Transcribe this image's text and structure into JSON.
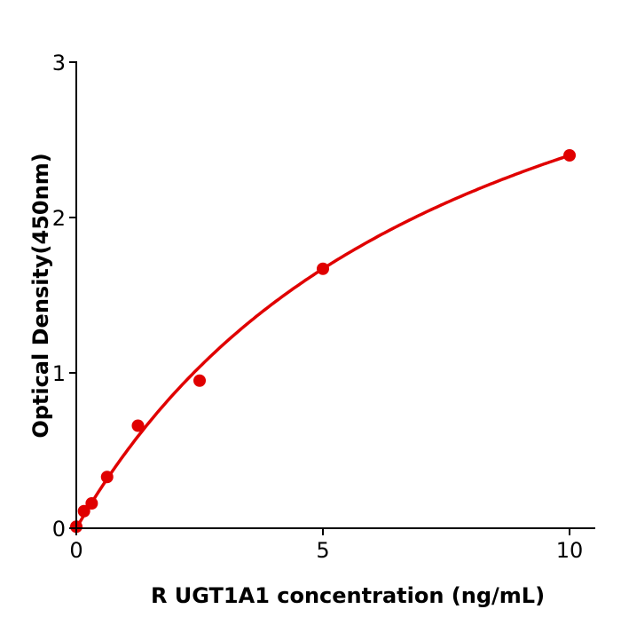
{
  "chart_data": {
    "type": "scatter",
    "title": "",
    "xlabel": "R  UGT1A1 concentration (ng/mL)",
    "ylabel": "Optical Density(450nm)",
    "xlim": [
      0,
      10.5
    ],
    "ylim": [
      0,
      3
    ],
    "xticks": [
      "0",
      "5",
      "10"
    ],
    "yticks": [
      "0",
      "1",
      "2",
      "3"
    ],
    "grid": false,
    "color": "#e00000",
    "series": [
      {
        "x": [
          0,
          0.156,
          0.3125,
          0.625,
          1.25,
          2.5,
          5,
          10
        ],
        "y": [
          0.01,
          0.11,
          0.16,
          0.33,
          0.66,
          0.95,
          1.67,
          2.4
        ],
        "fit_curve": true
      }
    ]
  }
}
